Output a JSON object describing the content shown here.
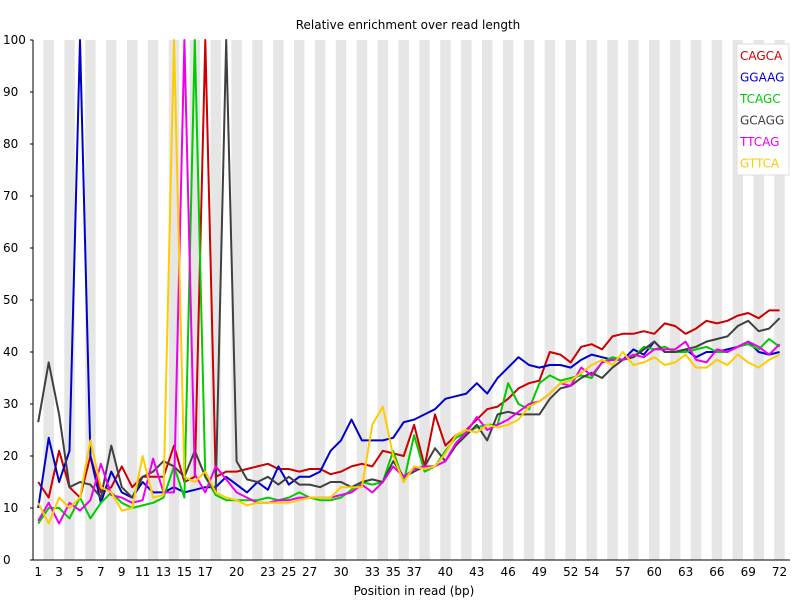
{
  "chart_data": {
    "type": "line",
    "title": "Relative enrichment over read length",
    "xlabel": "Position in read (bp)",
    "ylabel": "",
    "ylim": [
      0,
      100
    ],
    "yticks": [
      0,
      10,
      20,
      30,
      40,
      50,
      60,
      70,
      80,
      90,
      100
    ],
    "xticks": [
      "1",
      "3",
      "5",
      "7",
      "9",
      "11",
      "13",
      "15",
      "17",
      "20",
      "23",
      "25",
      "27",
      "30",
      "33",
      "35",
      "37",
      "40",
      "43",
      "46",
      "49",
      "52",
      "54",
      "57",
      "60",
      "63",
      "66",
      "69",
      "72"
    ],
    "positions": [
      1,
      2,
      3,
      4,
      5,
      6,
      7,
      8,
      9,
      10,
      11,
      12,
      13,
      14,
      15,
      16,
      17,
      18,
      19,
      20,
      21,
      22,
      23,
      24,
      25,
      26,
      27,
      28,
      29,
      30,
      31,
      32,
      33,
      34,
      35,
      36,
      37,
      38,
      39,
      40,
      41,
      42,
      43,
      44,
      45,
      46,
      47,
      48,
      49,
      50,
      51,
      52,
      53,
      54,
      55,
      56,
      57,
      58,
      59,
      60,
      61,
      62,
      63,
      64,
      65,
      66,
      67,
      68,
      69,
      70,
      71,
      72
    ],
    "grid": "alternating vertical bands",
    "legend_position": "top-right",
    "series": [
      {
        "name": "CAGCA",
        "color": "#cc0000",
        "values": [
          15,
          12,
          21,
          14,
          12,
          20,
          13,
          14,
          18,
          14,
          16,
          16,
          16,
          22,
          15,
          16,
          100,
          16,
          17,
          17,
          17.5,
          18,
          18.5,
          17.5,
          17.5,
          17,
          17.5,
          17.5,
          16.5,
          17,
          18,
          18.5,
          18,
          21,
          20.5,
          20,
          26,
          18,
          28,
          22,
          24,
          25,
          27,
          29,
          29.5,
          31,
          33,
          34,
          34.5,
          40,
          39.5,
          38,
          41,
          41.5,
          40.5,
          43,
          43.5,
          43.5,
          44,
          43.5,
          45.5,
          45,
          43.5,
          44.5,
          46,
          45.5,
          46,
          47,
          47.5,
          46.5,
          48,
          48
        ]
      },
      {
        "name": "GGAAG",
        "color": "#0000cc",
        "values": [
          10,
          23.5,
          15,
          21,
          100,
          20,
          11,
          17,
          13,
          12,
          15,
          13,
          13,
          14,
          13,
          13.5,
          14,
          14,
          16,
          14.5,
          13,
          15,
          13.5,
          18,
          14.5,
          16,
          16,
          17,
          21,
          23,
          27,
          23,
          23,
          23,
          23.5,
          26.5,
          27,
          28,
          29,
          31,
          31.5,
          32,
          34,
          32,
          35,
          37,
          39,
          37.5,
          37,
          37.5,
          37.5,
          37,
          38.5,
          39.5,
          39,
          38.5,
          38.5,
          40.5,
          39.5,
          42,
          40,
          40,
          40.5,
          39,
          40,
          40,
          40.5,
          41,
          42,
          40,
          39.5,
          40
        ]
      },
      {
        "name": "TCAGC",
        "color": "#00cc00",
        "values": [
          7,
          10,
          10,
          8,
          12,
          8,
          11,
          13,
          11,
          10,
          10.5,
          11,
          12,
          18,
          12,
          100,
          16,
          12.5,
          11.5,
          11.5,
          11.5,
          11.5,
          12,
          11.5,
          12,
          13,
          12,
          11.5,
          11.5,
          12,
          13.5,
          15,
          14.5,
          15,
          21,
          15,
          24,
          17,
          18,
          21,
          23.5,
          24.5,
          25.5,
          26,
          26,
          34,
          30,
          29,
          34,
          35.5,
          34.5,
          35,
          35.5,
          35,
          38,
          39,
          38.5,
          39,
          41,
          40.5,
          41,
          40,
          40,
          40.5,
          41,
          40,
          40,
          41,
          41.5,
          40.5,
          42.5,
          41
        ]
      },
      {
        "name": "GCAGG",
        "color": "#404040",
        "values": [
          26.5,
          38,
          28,
          14,
          15,
          14.5,
          12,
          22,
          14,
          12,
          16,
          17,
          19,
          18,
          16,
          21,
          16,
          13,
          100,
          19,
          15.5,
          15,
          16,
          14.5,
          16,
          14.5,
          14.5,
          14,
          15,
          15,
          14,
          15,
          15.5,
          15,
          19,
          16,
          17,
          18,
          21.5,
          19,
          22,
          24,
          26,
          23,
          28,
          28.5,
          28,
          28,
          28,
          31,
          33,
          33.5,
          35,
          36,
          35,
          37,
          38.5,
          39,
          40.5,
          42,
          40,
          40,
          40.5,
          41,
          42,
          42.5,
          43,
          45,
          46,
          44,
          44.5,
          46.5
        ]
      },
      {
        "name": "TTCAG",
        "color": "#ee00ee",
        "values": [
          7.5,
          11,
          7,
          11,
          9.5,
          11.5,
          18.5,
          12.5,
          12,
          11,
          11.5,
          19.5,
          13,
          13,
          100,
          16.5,
          13,
          18,
          15.5,
          13,
          12,
          11,
          11,
          11.5,
          11.5,
          12,
          12,
          12,
          12,
          12.5,
          13,
          14.5,
          13,
          15,
          18,
          16,
          17.5,
          18,
          18,
          19,
          22.5,
          24.5,
          27.5,
          25,
          26,
          27,
          28.5,
          30,
          30.5,
          32,
          34,
          33.5,
          37,
          35.5,
          38,
          38.5,
          38.5,
          39.5,
          39,
          40.5,
          40.5,
          40.5,
          42,
          38.5,
          38,
          40.5,
          40,
          41,
          42,
          41,
          39.5,
          41.5
        ]
      },
      {
        "name": "GTTCA",
        "color": "#ffcc00",
        "values": [
          11,
          7,
          12,
          10,
          12,
          23,
          14,
          13,
          9.5,
          10,
          20,
          12,
          12.5,
          100,
          16,
          15,
          17,
          13,
          12,
          11.5,
          10.5,
          11,
          11,
          11,
          11,
          11.5,
          12,
          12,
          12,
          14,
          14,
          14,
          26,
          29.5,
          20,
          15,
          18,
          17.5,
          18,
          20.5,
          24,
          25,
          24.5,
          26,
          25.5,
          26,
          27,
          29.5,
          30.5,
          32,
          34,
          34.5,
          36,
          37.5,
          38.5,
          37.5,
          40,
          37.5,
          38,
          39,
          37.5,
          38,
          39.5,
          37,
          37,
          38.5,
          37.5,
          39.5,
          38,
          37,
          38.5,
          39.5
        ]
      }
    ]
  }
}
